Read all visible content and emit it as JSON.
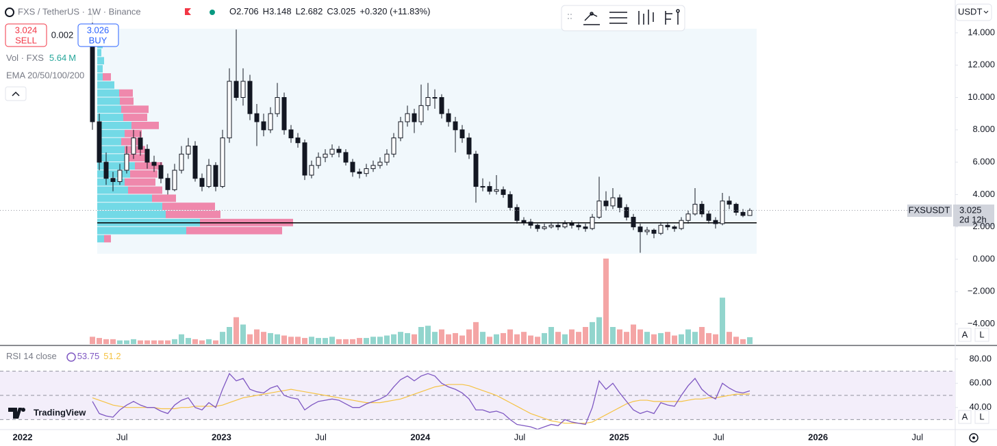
{
  "header": {
    "symbol": "FXS / TetherUS · 1W · Binance",
    "ohlc_labels": [
      "O",
      "H",
      "L",
      "C"
    ],
    "change": "+0.320 (+11.83%)"
  },
  "trade": {
    "sell_price": "3.024",
    "sell": "SELL",
    "spread": "0.002",
    "buy_price": "3.026",
    "buy": "BUY"
  },
  "legend": {
    "volume": "Vol · FXS",
    "volume_unit": "M",
    "ema": "EMA 20/50/100/200",
    "rsi": "RSI 14 close"
  },
  "price_label": {
    "symbol": "FXSUSDT",
    "countdown": "2d 12h"
  },
  "currency": "USDT",
  "buttons": [
    "A",
    "L"
  ],
  "logo": "TradingView",
  "price_axis": {
    "ticks": [
      {
        "value": 14,
        "label": "14.000"
      },
      {
        "value": 12,
        "label": "12.000"
      },
      {
        "value": 10,
        "label": "10.000"
      },
      {
        "value": 8,
        "label": "8.000"
      },
      {
        "value": 6,
        "label": "6.000"
      },
      {
        "value": 4,
        "label": "4.000"
      },
      {
        "value": 2,
        "label": "2.000"
      },
      {
        "value": 0,
        "label": "0.000"
      },
      {
        "value": -2,
        "label": "−2.000"
      },
      {
        "value": -4,
        "label": "−4.000"
      }
    ]
  },
  "time_axis": {
    "labels": [
      "2022",
      "Jul",
      "2023",
      "Jul",
      "2024",
      "Jul",
      "2025",
      "Jul",
      "2026",
      "Jul"
    ]
  },
  "candles": [
    [
      14.5,
      15.5,
      8.0,
      8.5
    ],
    [
      8.5,
      9.0,
      5.5,
      6.0
    ],
    [
      6.0,
      6.6,
      4.6,
      5.0
    ],
    [
      5.0,
      5.4,
      4.2,
      4.8
    ],
    [
      4.8,
      5.9,
      4.6,
      5.5
    ],
    [
      5.5,
      7.0,
      5.3,
      6.5
    ],
    [
      6.5,
      8.0,
      6.2,
      7.5
    ],
    [
      7.5,
      7.9,
      6.4,
      6.8
    ],
    [
      6.8,
      7.1,
      5.6,
      6.0
    ],
    [
      6.0,
      6.4,
      5.4,
      5.8
    ],
    [
      5.8,
      6.0,
      4.7,
      5.0
    ],
    [
      5.0,
      5.3,
      4.0,
      4.3
    ],
    [
      4.3,
      5.9,
      4.2,
      5.5
    ],
    [
      5.5,
      7.0,
      5.3,
      6.5
    ],
    [
      6.5,
      7.5,
      6.2,
      7.0
    ],
    [
      7.0,
      7.3,
      4.8,
      5.0
    ],
    [
      5.0,
      5.3,
      4.2,
      4.5
    ],
    [
      4.5,
      6.2,
      4.4,
      5.8
    ],
    [
      5.8,
      6.0,
      4.2,
      4.5
    ],
    [
      4.5,
      8.0,
      4.4,
      7.5
    ],
    [
      7.5,
      11.8,
      7.2,
      11.0
    ],
    [
      11.0,
      14.2,
      9.8,
      10.0
    ],
    [
      10.0,
      11.8,
      9.5,
      11.0
    ],
    [
      11.0,
      11.4,
      8.6,
      9.0
    ],
    [
      9.0,
      9.6,
      7.0,
      8.5
    ],
    [
      8.5,
      9.0,
      7.6,
      8.0
    ],
    [
      8.0,
      9.4,
      7.8,
      9.0
    ],
    [
      9.0,
      10.9,
      8.8,
      10.0
    ],
    [
      10.0,
      10.3,
      7.7,
      8.0
    ],
    [
      8.0,
      8.3,
      7.2,
      7.5
    ],
    [
      7.5,
      7.8,
      6.9,
      7.2
    ],
    [
      7.2,
      7.4,
      4.9,
      5.2
    ],
    [
      5.2,
      6.1,
      5.0,
      5.8
    ],
    [
      5.8,
      6.6,
      5.6,
      6.3
    ],
    [
      6.3,
      6.8,
      6.0,
      6.5
    ],
    [
      6.5,
      7.1,
      6.3,
      6.8
    ],
    [
      6.8,
      7.0,
      6.3,
      6.6
    ],
    [
      6.6,
      6.8,
      5.8,
      6.0
    ],
    [
      6.0,
      6.2,
      5.1,
      5.4
    ],
    [
      5.4,
      5.6,
      5.0,
      5.3
    ],
    [
      5.3,
      5.9,
      5.1,
      5.6
    ],
    [
      5.6,
      6.1,
      5.4,
      5.8
    ],
    [
      5.8,
      6.3,
      5.6,
      6.0
    ],
    [
      6.0,
      6.8,
      5.8,
      6.5
    ],
    [
      6.5,
      7.8,
      6.3,
      7.5
    ],
    [
      7.5,
      8.8,
      7.3,
      8.5
    ],
    [
      8.5,
      9.5,
      8.2,
      9.0
    ],
    [
      9.0,
      9.3,
      7.8,
      8.5
    ],
    [
      8.5,
      10.8,
      8.3,
      9.5
    ],
    [
      9.5,
      10.9,
      9.2,
      10.0
    ],
    [
      10.0,
      10.5,
      9.3,
      10.0
    ],
    [
      10.0,
      10.2,
      8.7,
      9.0
    ],
    [
      9.0,
      9.3,
      8.2,
      8.5
    ],
    [
      8.5,
      8.8,
      6.6,
      8.0
    ],
    [
      8.0,
      8.3,
      7.2,
      7.5
    ],
    [
      7.5,
      7.8,
      6.2,
      6.5
    ],
    [
      6.5,
      6.7,
      3.5,
      4.5
    ],
    [
      4.5,
      5.0,
      4.2,
      4.5
    ],
    [
      4.5,
      4.8,
      4.0,
      4.2
    ],
    [
      4.2,
      5.2,
      4.0,
      4.3
    ],
    [
      4.3,
      4.5,
      3.8,
      4.0
    ],
    [
      4.0,
      4.2,
      3.0,
      3.2
    ],
    [
      3.2,
      3.4,
      2.2,
      2.4
    ],
    [
      2.4,
      2.6,
      2.1,
      2.3
    ],
    [
      2.3,
      2.5,
      1.9,
      2.1
    ],
    [
      2.1,
      2.2,
      1.7,
      1.9
    ],
    [
      1.9,
      2.2,
      1.8,
      2.0
    ],
    [
      2.0,
      2.3,
      1.9,
      2.1
    ],
    [
      2.1,
      2.3,
      1.8,
      2.0
    ],
    [
      2.0,
      2.4,
      1.9,
      2.2
    ],
    [
      2.2,
      2.4,
      1.9,
      2.1
    ],
    [
      2.1,
      2.3,
      1.8,
      2.0
    ],
    [
      2.0,
      2.2,
      1.7,
      1.9
    ],
    [
      1.9,
      2.8,
      1.8,
      2.6
    ],
    [
      2.6,
      5.1,
      2.5,
      3.6
    ],
    [
      3.6,
      4.2,
      3.0,
      3.3
    ],
    [
      3.3,
      4.4,
      3.1,
      3.8
    ],
    [
      3.8,
      4.0,
      2.9,
      3.2
    ],
    [
      3.2,
      3.4,
      2.4,
      2.6
    ],
    [
      2.6,
      2.8,
      1.8,
      2.0
    ],
    [
      2.0,
      2.2,
      0.4,
      1.7
    ],
    [
      1.7,
      2.0,
      1.5,
      1.8
    ],
    [
      1.8,
      1.9,
      1.3,
      1.6
    ],
    [
      1.6,
      2.3,
      1.5,
      2.1
    ],
    [
      2.1,
      2.3,
      1.8,
      2.0
    ],
    [
      2.0,
      2.1,
      1.7,
      1.9
    ],
    [
      1.9,
      2.6,
      1.8,
      2.4
    ],
    [
      2.4,
      3.0,
      2.2,
      2.8
    ],
    [
      2.8,
      4.4,
      2.7,
      3.4
    ],
    [
      3.4,
      3.6,
      2.6,
      2.8
    ],
    [
      2.8,
      3.0,
      2.2,
      2.4
    ],
    [
      2.4,
      2.6,
      1.9,
      2.2
    ],
    [
      2.2,
      4.1,
      2.1,
      3.6
    ],
    [
      3.6,
      3.9,
      3.1,
      3.4
    ],
    [
      3.4,
      3.5,
      2.7,
      2.9
    ],
    [
      2.9,
      3.1,
      2.6,
      2.706
    ],
    [
      2.706,
      3.148,
      2.682,
      3.025
    ]
  ],
  "volume": [
    6,
    5,
    4,
    4,
    3,
    3,
    4,
    3,
    3,
    3,
    3,
    3,
    4,
    8,
    5,
    4,
    3,
    4,
    3,
    10,
    14,
    22,
    16,
    8,
    12,
    10,
    9,
    8,
    7,
    6,
    6,
    5,
    6,
    5,
    5,
    6,
    4,
    4,
    4,
    5,
    5,
    6,
    6,
    7,
    8,
    10,
    9,
    8,
    14,
    15,
    10,
    12,
    8,
    9,
    7,
    12,
    18,
    10,
    6,
    8,
    9,
    12,
    8,
    10,
    7,
    6,
    9,
    14,
    10,
    8,
    12,
    10,
    14,
    18,
    22,
    70,
    14,
    12,
    10,
    16,
    12,
    10,
    8,
    9,
    10,
    7,
    8,
    12,
    10,
    14,
    9,
    8,
    38,
    10,
    6,
    4,
    5.64
  ],
  "volume_profile": [
    [
      1.25,
      10,
      10
    ],
    [
      1.75,
      130,
      140
    ],
    [
      2.25,
      150,
      136
    ],
    [
      2.75,
      100,
      80
    ],
    [
      3.25,
      95,
      77
    ],
    [
      3.75,
      80,
      35
    ],
    [
      4.25,
      45,
      50
    ],
    [
      4.75,
      40,
      45
    ],
    [
      5.25,
      48,
      40
    ],
    [
      5.75,
      55,
      40
    ],
    [
      6.25,
      45,
      30
    ],
    [
      6.75,
      40,
      30
    ],
    [
      7.25,
      35,
      30
    ],
    [
      7.75,
      40,
      25
    ],
    [
      8.25,
      50,
      40
    ],
    [
      8.75,
      38,
      35
    ],
    [
      9.25,
      35,
      40
    ],
    [
      9.75,
      33,
      20
    ],
    [
      10.25,
      32,
      20
    ],
    [
      10.75,
      25,
      0
    ],
    [
      11.25,
      8,
      12
    ],
    [
      11.75,
      8,
      0
    ],
    [
      12.25,
      10,
      0
    ],
    [
      12.75,
      6,
      0
    ],
    [
      13.25,
      8,
      0
    ]
  ],
  "rsi": {
    "ticks": [
      {
        "value": 80,
        "label": "80.00"
      },
      {
        "value": 60,
        "label": "60.00"
      },
      {
        "value": 40,
        "label": "40.00"
      }
    ],
    "levels": [
      70,
      50,
      30
    ],
    "values": [
      45,
      35,
      33,
      32,
      38,
      42,
      45,
      42,
      40,
      40,
      37,
      35,
      42,
      46,
      48,
      40,
      38,
      44,
      40,
      55,
      68,
      62,
      64,
      55,
      53,
      52,
      56,
      58,
      50,
      48,
      47,
      38,
      42,
      45,
      46,
      47,
      46,
      43,
      40,
      40,
      43,
      45,
      47,
      50,
      57,
      63,
      66,
      62,
      66,
      68,
      66,
      60,
      57,
      55,
      52,
      47,
      38,
      38,
      36,
      37,
      35,
      30,
      26,
      25,
      24,
      22,
      24,
      26,
      25,
      30,
      28,
      27,
      26,
      40,
      62,
      55,
      60,
      52,
      45,
      38,
      35,
      37,
      35,
      44,
      42,
      41,
      50,
      58,
      64,
      55,
      50,
      47,
      60,
      56,
      53,
      52,
      53.75
    ],
    "ma": [
      48,
      46,
      44,
      42,
      41,
      40,
      40,
      40,
      40,
      40,
      39,
      39,
      39,
      40,
      40,
      41,
      41,
      41,
      41,
      42,
      44,
      46,
      48,
      49,
      50,
      51,
      52,
      53,
      54,
      55,
      54,
      53,
      52,
      51,
      50,
      49,
      48,
      47,
      46,
      45,
      44,
      44,
      44,
      45,
      46,
      47,
      49,
      51,
      53,
      55,
      57,
      58,
      59,
      59,
      59,
      58,
      56,
      54,
      52,
      50,
      47,
      44,
      41,
      38,
      35,
      33,
      31,
      29,
      28,
      27,
      27,
      27,
      27,
      28,
      31,
      34,
      37,
      40,
      43,
      45,
      46,
      46,
      45,
      45,
      45,
      45,
      45,
      46,
      47,
      47,
      48,
      48,
      49,
      50,
      51,
      51,
      51.2
    ]
  },
  "colors": {
    "up": "#ffffff",
    "down": "#131722",
    "volume_up": "#92d5cd",
    "volume_down": "#f4a5a5",
    "profile_up": "#5cd3e2",
    "profile_down": "#ef6b97",
    "rsi": "#7e57c2",
    "rsi_ma": "#f5c242",
    "sell": "#f23645",
    "buy": "#2962ff",
    "volume_text": "#26a69a"
  }
}
